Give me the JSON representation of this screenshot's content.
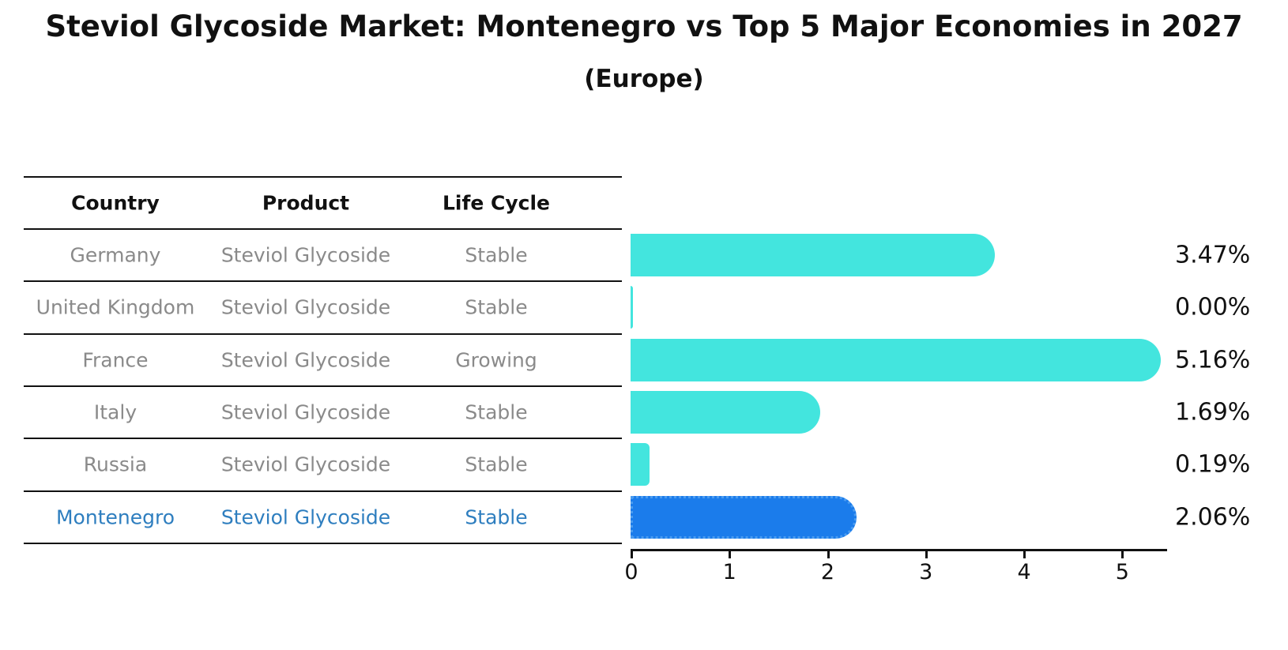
{
  "title": "Steviol Glycoside Market: Montenegro vs Top 5 Major Economies in 2027",
  "subtitle": "(Europe)",
  "table": {
    "headers": [
      "Country",
      "Product",
      "Life Cycle"
    ],
    "rows": [
      {
        "country": "Germany",
        "product": "Steviol Glycoside",
        "life_cycle": "Stable",
        "highlighted": false
      },
      {
        "country": "United Kingdom",
        "product": "Steviol Glycoside",
        "life_cycle": "Stable",
        "highlighted": false
      },
      {
        "country": "France",
        "product": "Steviol Glycoside",
        "life_cycle": "Growing",
        "highlighted": false
      },
      {
        "country": "Italy",
        "product": "Steviol Glycoside",
        "life_cycle": "Stable",
        "highlighted": false
      },
      {
        "country": "Russia",
        "product": "Steviol Glycoside",
        "life_cycle": "Stable",
        "highlighted": false
      },
      {
        "country": "Montenegro",
        "product": "Steviol Glycoside",
        "life_cycle": "Stable",
        "highlighted": true
      }
    ]
  },
  "chart_data": {
    "type": "bar",
    "orientation": "horizontal",
    "categories": [
      "Germany",
      "United Kingdom",
      "France",
      "Italy",
      "Russia",
      "Montenegro"
    ],
    "values": [
      3.47,
      0.0,
      5.16,
      1.69,
      0.19,
      2.06
    ],
    "value_labels": [
      "3.47%",
      "0.00%",
      "5.16%",
      "1.69%",
      "0.19%",
      "2.06%"
    ],
    "title": "Steviol Glycoside Market: Montenegro vs Top 5 Major Economies in 2027 (Europe)",
    "xlabel": "",
    "ylabel": "",
    "xticks": [
      "0",
      "1",
      "2",
      "3",
      "4",
      "5"
    ],
    "xlim": [
      0,
      5.46
    ],
    "grid": false,
    "legend": "none",
    "highlight_index": 5,
    "bar_color": "#43e5de",
    "highlight_bar_color": "#1b7ceb",
    "highlight_border_color": "#4b9cf0",
    "highlight_text_color": "#2e7ebf",
    "row_text_color": "#8a8a8a",
    "axis_color": "#111111"
  }
}
